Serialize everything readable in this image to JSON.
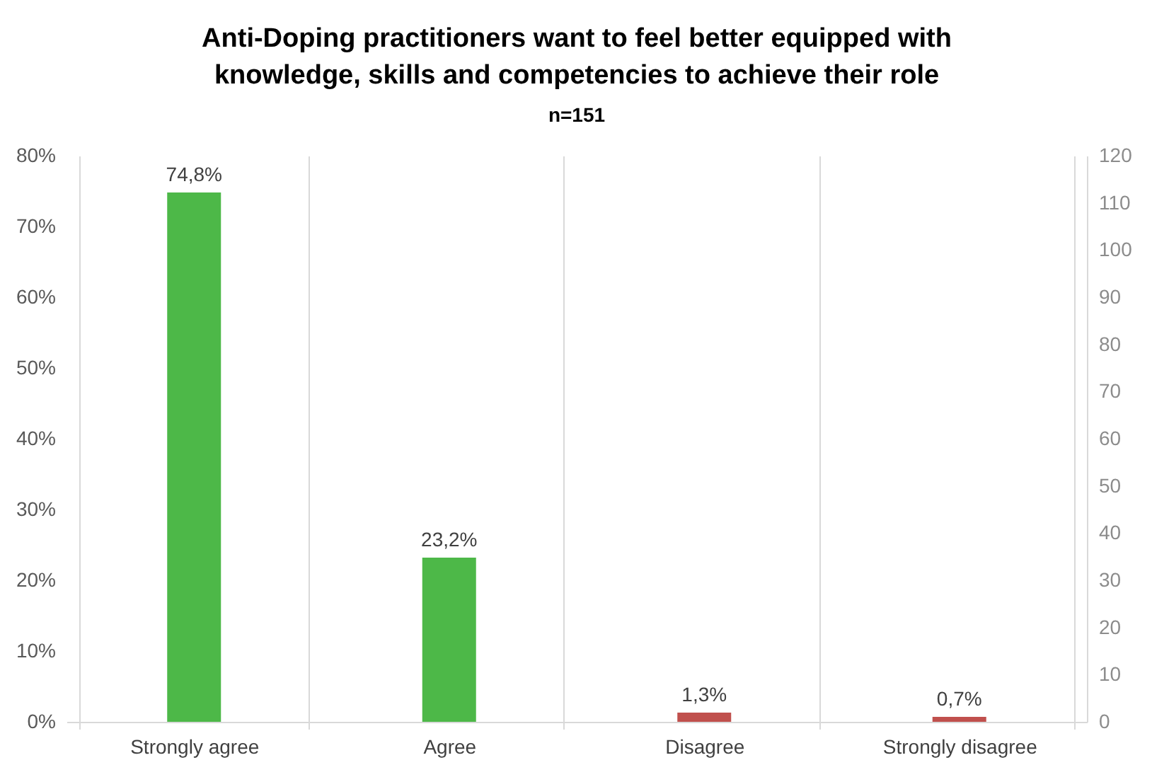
{
  "chart_data": {
    "type": "bar",
    "title": "Anti-Doping practitioners want to feel better equipped with knowledge, skills and competencies to achieve their role",
    "subtitle": "n=151",
    "categories": [
      "Strongly agree",
      "Agree",
      "Disagree",
      "Strongly disagree"
    ],
    "values": [
      74.8,
      23.2,
      1.3,
      0.7
    ],
    "colors": [
      "#4db848",
      "#4db848",
      "#c0504d",
      "#c0504d"
    ],
    "value_labels": [
      "74,8%",
      "23,2%",
      "1,3%",
      "0,7%"
    ],
    "ylim": [
      0,
      80
    ],
    "yticks": [
      {
        "value": 0,
        "label": "0%"
      },
      {
        "value": 10,
        "label": "10%"
      },
      {
        "value": 20,
        "label": "20%"
      },
      {
        "value": 30,
        "label": "30%"
      },
      {
        "value": 40,
        "label": "40%"
      },
      {
        "value": 50,
        "label": "50%"
      },
      {
        "value": 60,
        "label": "60%"
      },
      {
        "value": 70,
        "label": "70%"
      },
      {
        "value": 80,
        "label": "80%"
      }
    ],
    "y2lim": [
      0,
      120
    ],
    "y2ticks": [
      0,
      10,
      20,
      30,
      40,
      50,
      60,
      70,
      80,
      90,
      100,
      110,
      120
    ],
    "grid": "x"
  }
}
